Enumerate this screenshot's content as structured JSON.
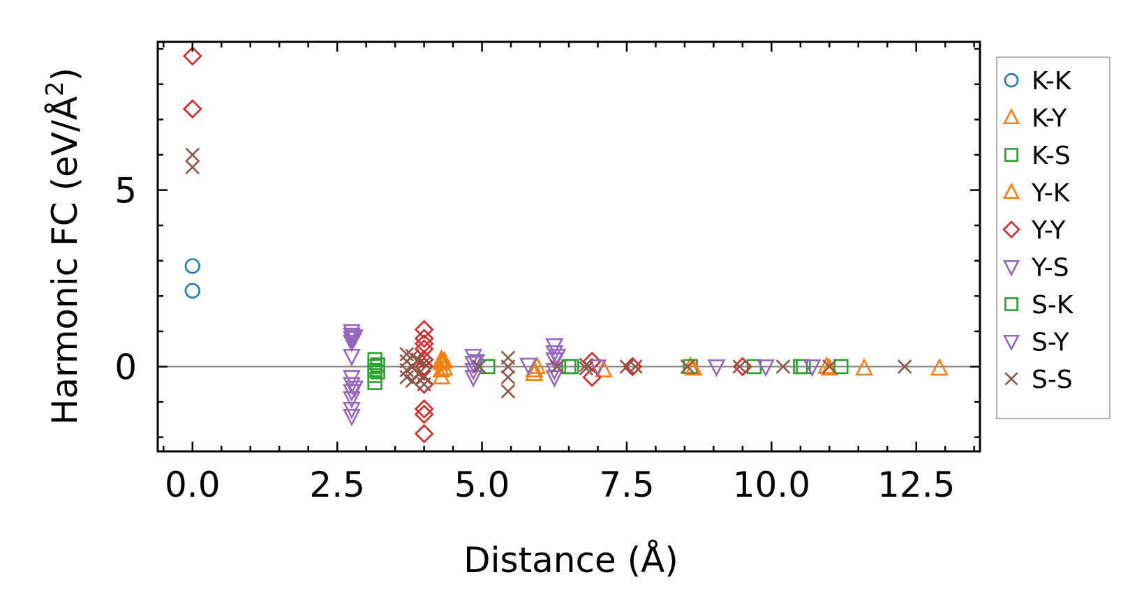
{
  "chart_data": {
    "type": "scatter",
    "xlabel": "Distance (Å)",
    "ylabel_main": "Harmonic FC (eV/Å",
    "ylabel_sup": "2",
    "ylabel_close": ")",
    "xlim": [
      -0.6,
      13.6
    ],
    "ylim": [
      -2.4,
      9.2
    ],
    "xticks": [
      0.0,
      2.5,
      5.0,
      7.5,
      10.0,
      12.5
    ],
    "xtick_labels": [
      "0.0",
      "2.5",
      "5.0",
      "7.5",
      "10.0",
      "12.5"
    ],
    "yticks": [
      0,
      5
    ],
    "ytick_labels": [
      "0",
      "5"
    ],
    "x_minor_step": 0.5,
    "y_minor_step": 1,
    "zero_line": true,
    "legend_position": "outside right",
    "series": [
      {
        "name": "K-K",
        "marker": "circle",
        "color": "#1f77b4",
        "points": [
          [
            0,
            2.85
          ],
          [
            0,
            2.15
          ]
        ]
      },
      {
        "name": "K-Y",
        "marker": "triangle-up",
        "color": "#ff7f0e",
        "points": [
          [
            4.3,
            0.2
          ],
          [
            4.3,
            0.1
          ],
          [
            4.3,
            -0.1
          ],
          [
            4.3,
            -0.3
          ],
          [
            5.9,
            -0.1
          ],
          [
            5.9,
            -0.2
          ],
          [
            7.1,
            -0.1
          ],
          [
            8.6,
            0.0
          ],
          [
            11.0,
            -0.05
          ],
          [
            11.6,
            -0.05
          ],
          [
            12.9,
            -0.05
          ]
        ]
      },
      {
        "name": "K-S",
        "marker": "square",
        "color": "#2ca02c",
        "points": [
          [
            3.15,
            0.2
          ],
          [
            3.15,
            0.0
          ],
          [
            3.15,
            -0.1
          ],
          [
            3.15,
            -0.25
          ],
          [
            3.15,
            -0.45
          ],
          [
            5.1,
            0.0
          ],
          [
            6.5,
            0.0
          ],
          [
            8.6,
            0.0
          ],
          [
            9.7,
            0.0
          ],
          [
            10.5,
            0.0
          ],
          [
            11.2,
            0.0
          ]
        ]
      },
      {
        "name": "Y-K",
        "marker": "triangle-up",
        "color": "#ff7f0e",
        "points": [
          [
            4.35,
            0.15
          ],
          [
            4.35,
            -0.05
          ],
          [
            5.95,
            0.0
          ],
          [
            8.65,
            -0.05
          ],
          [
            10.95,
            0.0
          ]
        ]
      },
      {
        "name": "Y-Y",
        "marker": "diamond",
        "color": "#d62728",
        "points": [
          [
            0,
            8.8
          ],
          [
            0,
            7.3
          ],
          [
            4.0,
            1.05
          ],
          [
            4.0,
            0.8
          ],
          [
            4.0,
            0.65
          ],
          [
            4.0,
            0.5
          ],
          [
            4.0,
            0.2
          ],
          [
            4.0,
            0.0
          ],
          [
            4.0,
            -0.5
          ],
          [
            4.0,
            -1.2
          ],
          [
            4.0,
            -1.35
          ],
          [
            4.0,
            -1.9
          ],
          [
            6.9,
            0.15
          ],
          [
            6.9,
            -0.3
          ],
          [
            7.6,
            0.0
          ],
          [
            9.5,
            0.0
          ]
        ]
      },
      {
        "name": "Y-S",
        "marker": "triangle-down",
        "color": "#9467bd",
        "points": [
          [
            2.75,
            1.0
          ],
          [
            2.75,
            0.9
          ],
          [
            2.75,
            0.8
          ],
          [
            2.75,
            0.7
          ],
          [
            2.75,
            0.3
          ],
          [
            2.75,
            -0.3
          ],
          [
            2.75,
            -0.5
          ],
          [
            2.75,
            -0.7
          ],
          [
            2.75,
            -0.9
          ],
          [
            2.75,
            -1.2
          ],
          [
            2.75,
            -1.4
          ],
          [
            4.85,
            0.3
          ],
          [
            4.85,
            0.1
          ],
          [
            4.85,
            -0.1
          ],
          [
            4.85,
            -0.3
          ],
          [
            6.25,
            0.6
          ],
          [
            6.25,
            0.4
          ],
          [
            6.25,
            0.2
          ],
          [
            6.25,
            -0.1
          ],
          [
            6.25,
            -0.3
          ],
          [
            9.05,
            0.0
          ],
          [
            9.9,
            0.0
          ]
        ]
      },
      {
        "name": "S-K",
        "marker": "square",
        "color": "#2ca02c",
        "points": [
          [
            3.2,
            0.05
          ],
          [
            3.2,
            -0.15
          ],
          [
            6.55,
            0.0
          ],
          [
            10.55,
            0.0
          ]
        ]
      },
      {
        "name": "S-Y",
        "marker": "triangle-down",
        "color": "#9467bd",
        "points": [
          [
            2.8,
            0.85
          ],
          [
            2.8,
            -0.6
          ],
          [
            4.9,
            0.15
          ],
          [
            5.8,
            0.05
          ],
          [
            6.3,
            0.3
          ],
          [
            7.0,
            0.0
          ],
          [
            10.7,
            0.0
          ]
        ]
      },
      {
        "name": "S-S",
        "marker": "x",
        "color": "#8c564b",
        "points": [
          [
            0,
            6.0
          ],
          [
            0,
            5.65
          ],
          [
            3.7,
            0.35
          ],
          [
            3.7,
            0.15
          ],
          [
            3.7,
            -0.1
          ],
          [
            3.7,
            -0.3
          ],
          [
            3.8,
            0.3
          ],
          [
            3.8,
            0.0
          ],
          [
            3.8,
            -0.4
          ],
          [
            3.9,
            0.2
          ],
          [
            3.9,
            -0.2
          ],
          [
            4.0,
            0.1
          ],
          [
            4.0,
            -0.3
          ],
          [
            4.0,
            -0.5
          ],
          [
            5.45,
            0.25
          ],
          [
            5.45,
            0.0
          ],
          [
            5.45,
            -0.3
          ],
          [
            5.45,
            -0.7
          ],
          [
            4.95,
            0.0
          ],
          [
            6.3,
            0.0
          ],
          [
            6.8,
            0.05
          ],
          [
            6.8,
            -0.05
          ],
          [
            7.5,
            0.0
          ],
          [
            7.65,
            0.0
          ],
          [
            8.55,
            0.0
          ],
          [
            9.45,
            0.0
          ],
          [
            10.2,
            0.0
          ],
          [
            11.0,
            0.0
          ],
          [
            12.3,
            0.0
          ]
        ]
      }
    ]
  }
}
